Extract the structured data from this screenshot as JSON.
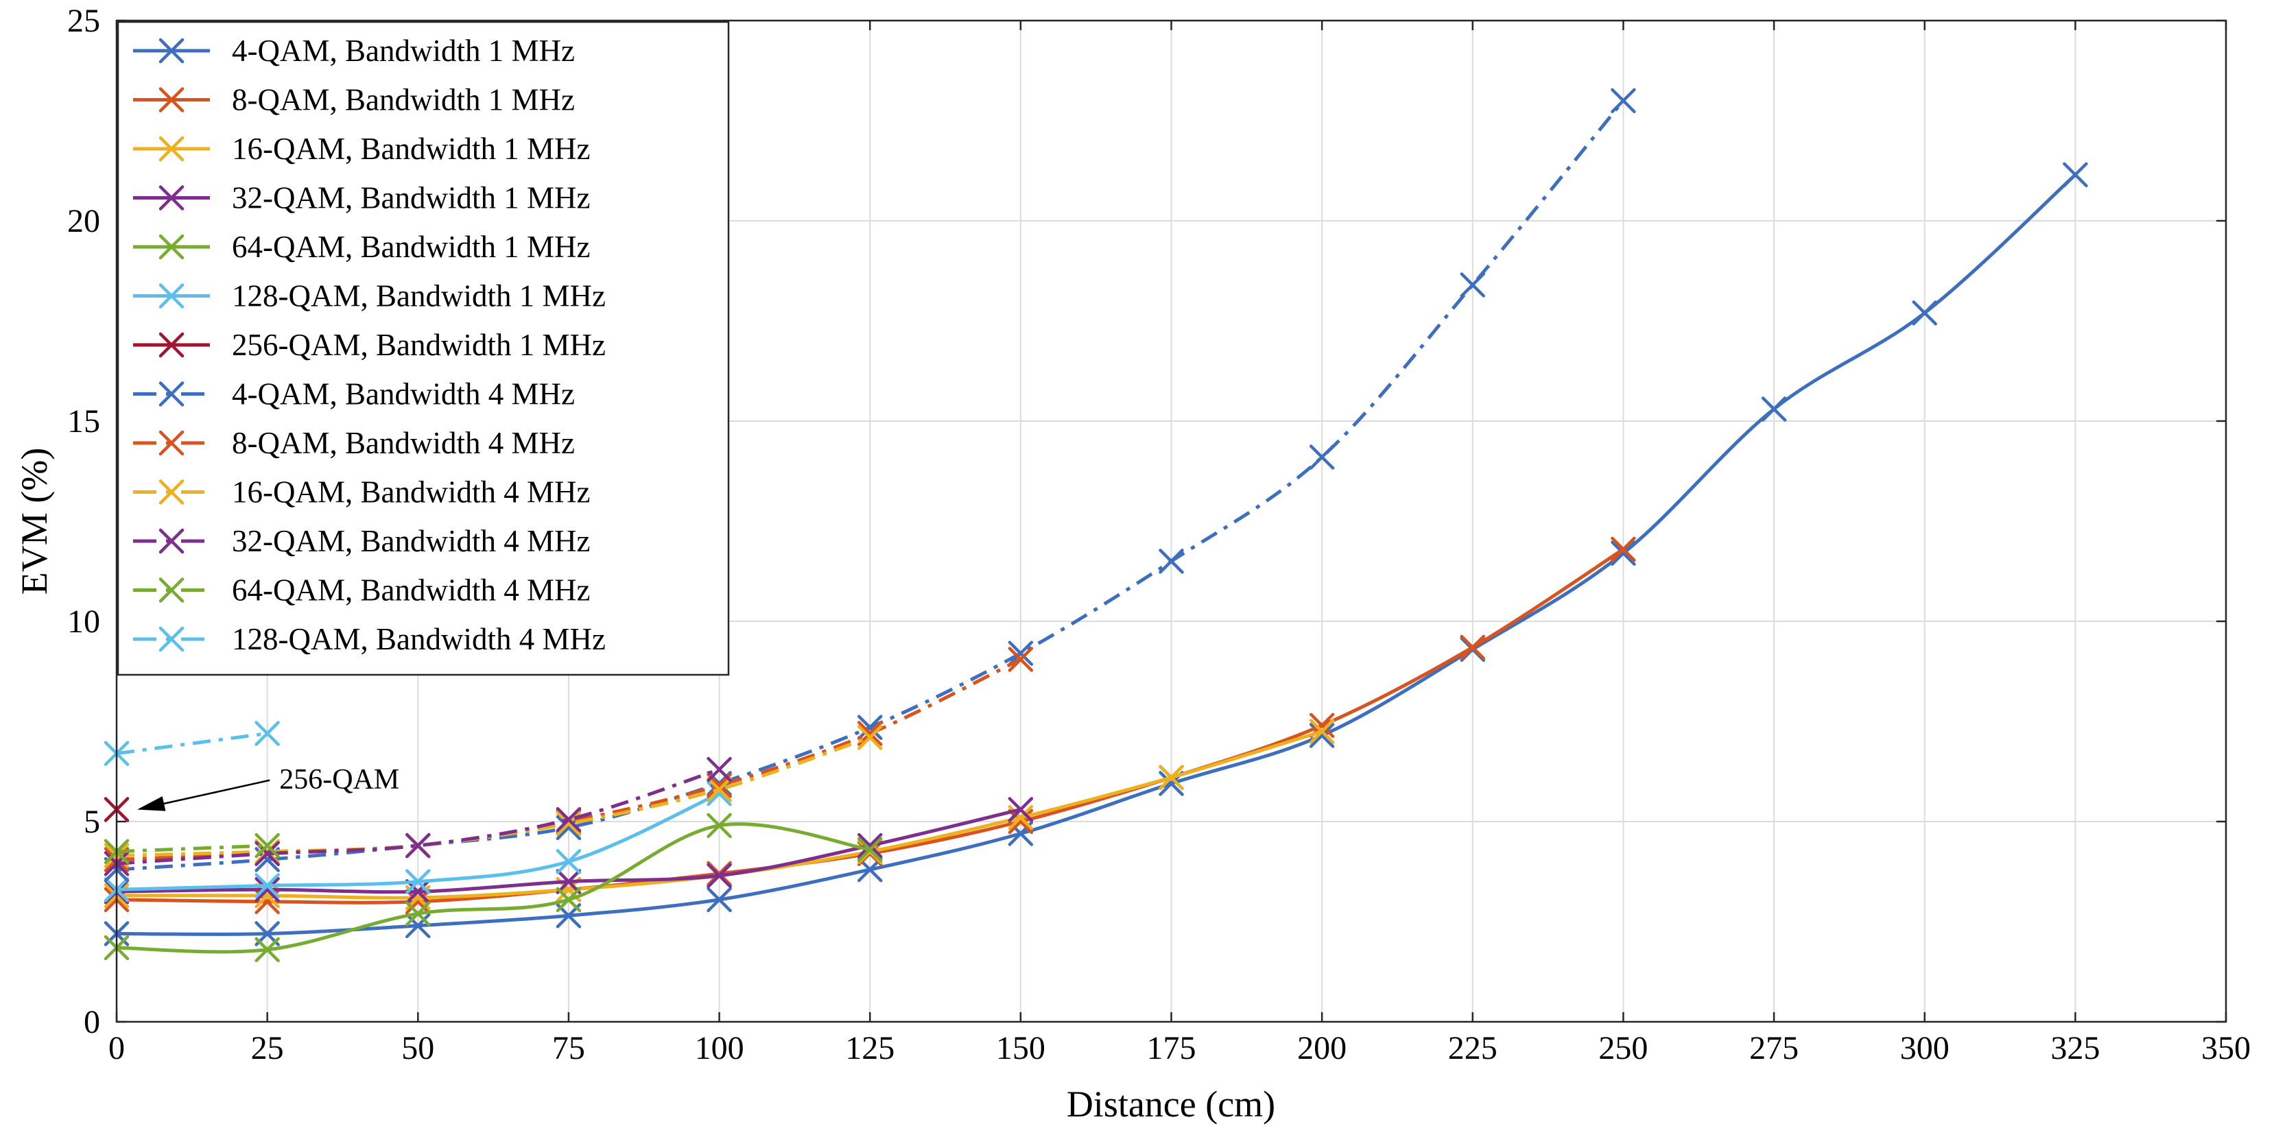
{
  "chart_data": {
    "type": "line",
    "title": "",
    "xlabel": "Distance (cm)",
    "ylabel": "EVM (%)",
    "xlim": [
      0,
      350
    ],
    "ylim": [
      0,
      25
    ],
    "xticks": [
      0,
      25,
      50,
      75,
      100,
      125,
      150,
      175,
      200,
      225,
      250,
      275,
      300,
      325,
      350
    ],
    "yticks": [
      0,
      5,
      10,
      15,
      20,
      25
    ],
    "grid": true,
    "legend_position": "top-left",
    "annotation": {
      "text": "256-QAM",
      "points_to": [
        0,
        5.3
      ],
      "label_at": [
        27,
        6.1
      ]
    },
    "series": [
      {
        "name": "4-QAM, Bandwidth 1 MHz",
        "color": "#3e6fbf",
        "style": "solid",
        "x": [
          0,
          25,
          50,
          75,
          100,
          125,
          150,
          175,
          200,
          225,
          250,
          275,
          300,
          325
        ],
        "y": [
          2.2,
          2.2,
          2.4,
          2.65,
          3.05,
          3.8,
          4.7,
          5.95,
          7.15,
          9.3,
          11.7,
          15.3,
          17.7,
          21.15
        ]
      },
      {
        "name": "8-QAM, Bandwidth 1 MHz",
        "color": "#d9531e",
        "style": "solid",
        "x": [
          0,
          25,
          50,
          75,
          100,
          125,
          150,
          175,
          200,
          225,
          250
        ],
        "y": [
          3.05,
          3.0,
          3.0,
          3.3,
          3.7,
          4.2,
          5.0,
          6.1,
          7.4,
          9.35,
          11.8
        ]
      },
      {
        "name": "16-QAM, Bandwidth 1 MHz",
        "color": "#edb120",
        "style": "solid",
        "x": [
          0,
          25,
          50,
          75,
          100,
          125,
          150,
          175,
          200
        ],
        "y": [
          3.15,
          3.15,
          3.1,
          3.3,
          3.65,
          4.25,
          5.1,
          6.1,
          7.25
        ]
      },
      {
        "name": "32-QAM, Bandwidth 1 MHz",
        "color": "#7e2f8e",
        "style": "solid",
        "x": [
          0,
          25,
          50,
          75,
          100,
          125,
          150
        ],
        "y": [
          3.25,
          3.3,
          3.25,
          3.5,
          3.65,
          4.4,
          5.3
        ]
      },
      {
        "name": "64-QAM, Bandwidth 1 MHz",
        "color": "#77ac30",
        "style": "solid",
        "x": [
          0,
          25,
          50,
          75,
          100,
          125
        ],
        "y": [
          1.85,
          1.8,
          2.7,
          3.05,
          4.9,
          4.3
        ]
      },
      {
        "name": "128-QAM, Bandwidth 1 MHz",
        "color": "#5bbfec",
        "style": "solid",
        "x": [
          0,
          25,
          50,
          75,
          100
        ],
        "y": [
          3.3,
          3.4,
          3.5,
          4.0,
          5.7
        ]
      },
      {
        "name": "256-QAM, Bandwidth 1 MHz",
        "color": "#a2142f",
        "style": "solid",
        "x": [
          0
        ],
        "y": [
          5.3
        ]
      },
      {
        "name": "4-QAM, Bandwidth 4 MHz",
        "color": "#3e6fbf",
        "style": "dashdot",
        "x": [
          0,
          25,
          50,
          75,
          100,
          125,
          150,
          175,
          200,
          225,
          250
        ],
        "y": [
          3.8,
          4.05,
          4.4,
          4.85,
          5.95,
          7.35,
          9.2,
          11.5,
          14.1,
          18.4,
          23.0
        ]
      },
      {
        "name": "8-QAM, Bandwidth 4 MHz",
        "color": "#d9531e",
        "style": "dashdot",
        "x": [
          0,
          25,
          50,
          75,
          100,
          125,
          150
        ],
        "y": [
          4.05,
          4.2,
          4.4,
          5.0,
          5.9,
          7.2,
          9.05
        ]
      },
      {
        "name": "16-QAM, Bandwidth 4 MHz",
        "color": "#edb120",
        "style": "dashdot",
        "x": [
          0,
          25,
          50,
          75,
          100,
          125
        ],
        "y": [
          4.15,
          4.25,
          4.4,
          4.95,
          5.8,
          7.1
        ]
      },
      {
        "name": "32-QAM, Bandwidth 4 MHz",
        "color": "#7e2f8e",
        "style": "dashdot",
        "x": [
          0,
          25,
          50,
          75,
          100
        ],
        "y": [
          3.95,
          4.2,
          4.4,
          5.05,
          6.3
        ]
      },
      {
        "name": "64-QAM, Bandwidth 4 MHz",
        "color": "#77ac30",
        "style": "dashdot",
        "x": [
          0,
          25
        ],
        "y": [
          4.25,
          4.4
        ]
      },
      {
        "name": "128-QAM, Bandwidth 4 MHz",
        "color": "#5bbfec",
        "style": "dashdot",
        "x": [
          0,
          25
        ],
        "y": [
          6.7,
          7.2
        ]
      }
    ]
  }
}
